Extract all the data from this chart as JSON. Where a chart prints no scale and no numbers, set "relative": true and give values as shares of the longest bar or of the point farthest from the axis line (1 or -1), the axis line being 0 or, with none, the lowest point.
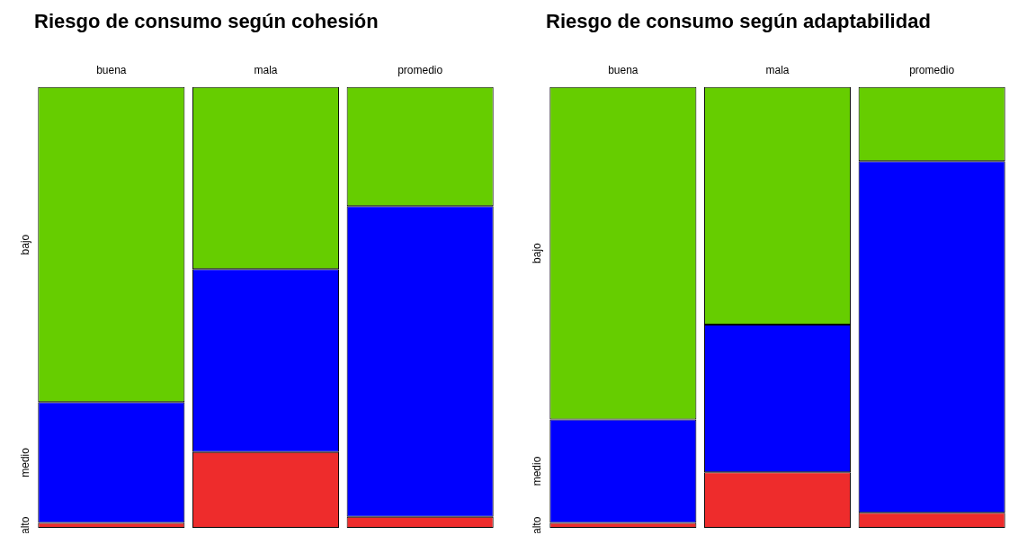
{
  "chart_data": [
    {
      "type": "bar",
      "title": "Riesgo de consumo según cohesión",
      "categories": [
        "buena",
        "mala",
        "promedio"
      ],
      "stacked": true,
      "relative": true,
      "series": [
        {
          "name": "alto",
          "color": "#ee2c2c",
          "values": [
            0.011,
            0.172,
            0.025
          ]
        },
        {
          "name": "medio",
          "color": "#0000ff",
          "values": [
            0.274,
            0.415,
            0.705
          ]
        },
        {
          "name": "bajo",
          "color": "#66cd00",
          "values": [
            0.715,
            0.413,
            0.27
          ]
        }
      ]
    },
    {
      "type": "bar",
      "title": "Riesgo de consumo según adaptabilidad",
      "categories": [
        "buena",
        "mala",
        "promedio"
      ],
      "stacked": true,
      "relative": true,
      "series": [
        {
          "name": "alto",
          "color": "#ee2c2c",
          "values": [
            0.011,
            0.126,
            0.034
          ]
        },
        {
          "name": "medio",
          "color": "#0000ff",
          "values": [
            0.235,
            0.335,
            0.798
          ]
        },
        {
          "name": "bajo",
          "color": "#66cd00",
          "values": [
            0.754,
            0.539,
            0.168
          ]
        }
      ]
    }
  ]
}
